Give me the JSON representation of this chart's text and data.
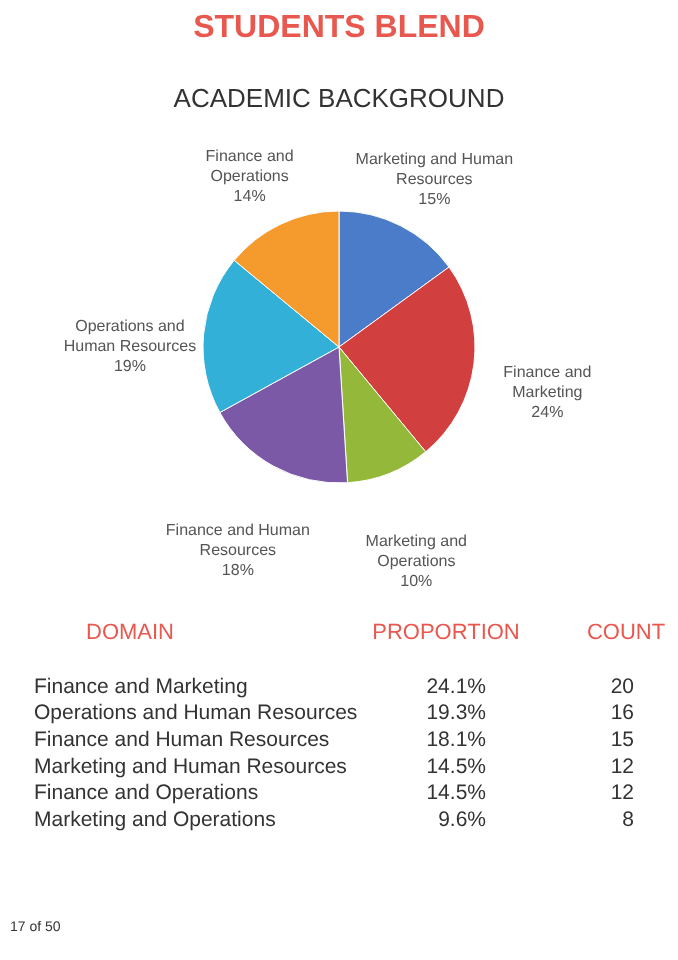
{
  "chart_data": [
    {
      "type": "pie",
      "title": "STUDENTS BLEND",
      "subtitle": "ACADEMIC BACKGROUND",
      "categories": [
        "Marketing and Human Resources",
        "Finance and Marketing",
        "Marketing and Operations",
        "Finance and Human Resources",
        "Operations and Human Resources",
        "Finance and Operations"
      ],
      "values": [
        15,
        24,
        10,
        18,
        19,
        14
      ],
      "colors": [
        "#4a7cc9",
        "#d13f3f",
        "#94b83a",
        "#7b59a6",
        "#33b0d8",
        "#f59a2c"
      ],
      "value_labels": [
        "15%",
        "24%",
        "10%",
        "18%",
        "19%",
        "14%"
      ]
    },
    {
      "type": "other",
      "xlabel": "DOMAIN",
      "categories": [
        "Finance and Marketing",
        "Operations and Human Resources",
        "Finance and Human Resources",
        "Marketing and Human Resources",
        "Finance and Operations",
        "Marketing and Operations"
      ],
      "series": [
        {
          "name": "PROPORTION",
          "values": [
            24.1,
            19.3,
            18.1,
            14.5,
            14.5,
            9.6
          ],
          "value_labels": [
            "24.1%",
            "19.3%",
            "18.1%",
            "14.5%",
            "14.5%",
            "9.6%"
          ]
        },
        {
          "name": "COUNT",
          "values": [
            20,
            16,
            15,
            12,
            12,
            8
          ]
        }
      ],
      "data_labels": true,
      "annotations": [
        "17 of 50"
      ]
    }
  ]
}
